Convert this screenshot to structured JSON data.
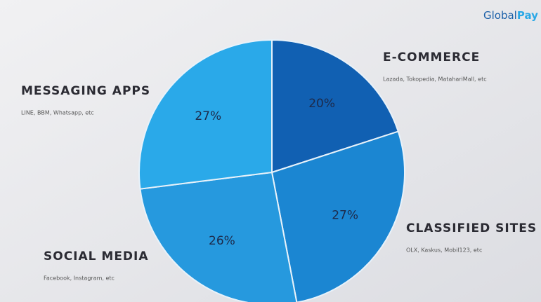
{
  "brand_parts": [
    "Global",
    "Pay"
  ],
  "chart_data": {
    "type": "pie",
    "categories": [
      "E-COMMERCE",
      "CLASSIFIED SITES",
      "SOCIAL MEDIA",
      "MESSAGING APPS"
    ],
    "descriptions": [
      "Lazada, Tokopedia, MatahariMall, etc",
      "OLX, Kaskus, Mobil123, etc",
      "Facebook, Instagram, etc",
      "LINE, BBM, Whatsapp, etc"
    ],
    "values": [
      20,
      27,
      26,
      27
    ],
    "value_labels": [
      "20%",
      "27%",
      "26%",
      "27%"
    ],
    "colors": [
      "#1160b2",
      "#1b86d2",
      "#2699de",
      "#2aa9e9"
    ]
  }
}
